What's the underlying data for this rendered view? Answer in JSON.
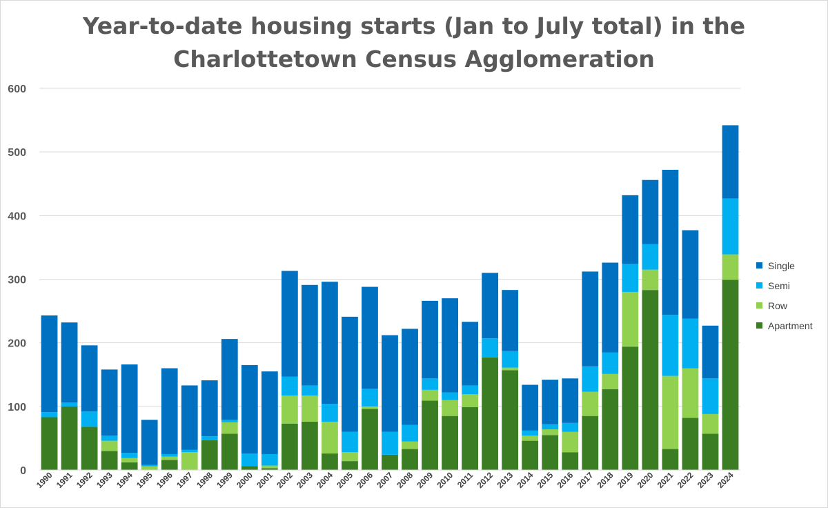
{
  "chart_data": {
    "type": "bar",
    "stacked": true,
    "title": [
      "Year-to-date housing starts (Jan to July total) in the",
      "Charlottetown Census Agglomeration"
    ],
    "xlabel": "",
    "ylabel": "",
    "ylim": [
      0,
      600
    ],
    "yticks": [
      "0",
      "100",
      "200",
      "300",
      "400",
      "500",
      "600"
    ],
    "grid": true,
    "legend_position": "right",
    "categories": [
      "1990",
      "1991",
      "1992",
      "1993",
      "1994",
      "1995",
      "1996",
      "1997",
      "1998",
      "1999",
      "2000",
      "2001",
      "2002",
      "2003",
      "2004",
      "2005",
      "2006",
      "2007",
      "2008",
      "2009",
      "2010",
      "2011",
      "2012",
      "2013",
      "2014",
      "2015",
      "2016",
      "2017",
      "2018",
      "2019",
      "2020",
      "2021",
      "2022",
      "2023",
      "2024"
    ],
    "series": [
      {
        "name": "Apartment",
        "color": "#3a7d22",
        "values": [
          83,
          100,
          68,
          30,
          12,
          0,
          16,
          0,
          47,
          57,
          6,
          3,
          73,
          76,
          26,
          14,
          96,
          24,
          33,
          109,
          85,
          99,
          177,
          157,
          46,
          55,
          28,
          85,
          127,
          194,
          283,
          33,
          82,
          57,
          299
        ]
      },
      {
        "name": "Row",
        "color": "#92d050",
        "values": [
          0,
          0,
          0,
          16,
          7,
          6,
          5,
          28,
          0,
          18,
          0,
          4,
          44,
          41,
          50,
          14,
          4,
          0,
          12,
          17,
          25,
          20,
          0,
          4,
          8,
          9,
          32,
          38,
          24,
          86,
          32,
          115,
          78,
          31,
          40
        ]
      },
      {
        "name": "Semi",
        "color": "#00b0f0",
        "values": [
          8,
          6,
          24,
          8,
          8,
          2,
          4,
          4,
          6,
          4,
          20,
          18,
          30,
          16,
          28,
          32,
          28,
          36,
          26,
          18,
          12,
          14,
          30,
          26,
          8,
          8,
          14,
          40,
          34,
          44,
          40,
          96,
          78,
          56,
          88
        ]
      },
      {
        "name": "Single",
        "color": "#0070c0",
        "values": [
          152,
          126,
          104,
          104,
          139,
          71,
          135,
          101,
          88,
          127,
          139,
          130,
          166,
          158,
          192,
          181,
          160,
          152,
          151,
          122,
          148,
          100,
          103,
          96,
          72,
          70,
          70,
          149,
          141,
          108,
          101,
          228,
          139,
          83,
          115
        ]
      }
    ]
  }
}
